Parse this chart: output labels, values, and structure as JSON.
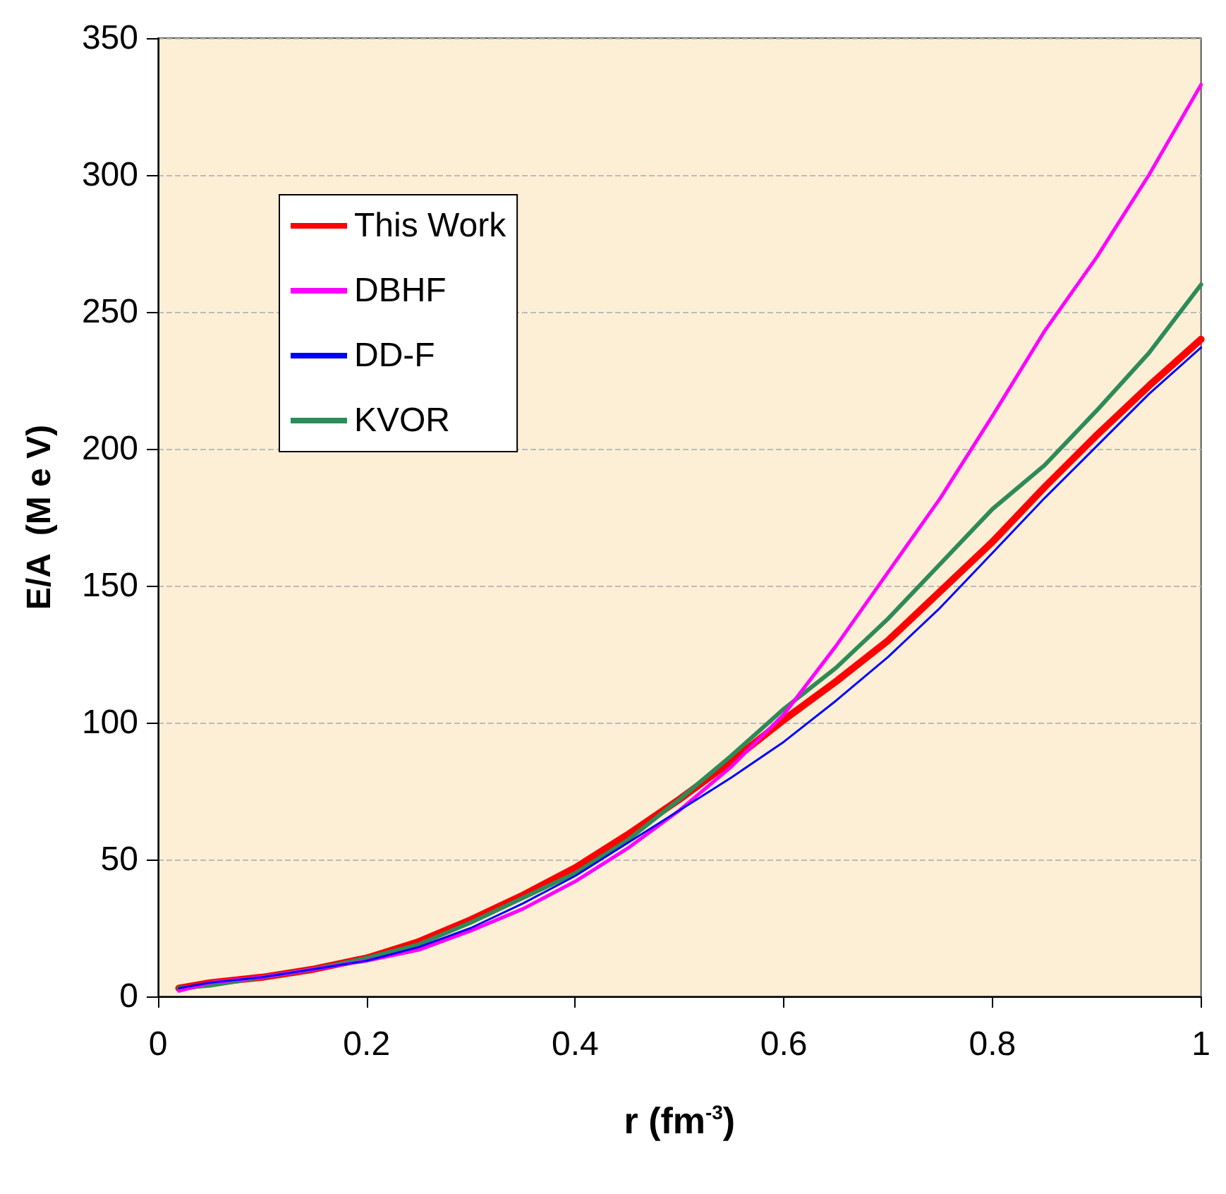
{
  "chart_data": {
    "type": "line",
    "xlabel": "r (fm$^{-3}$)",
    "ylabel": "E/A  (M e V)",
    "x": [
      0.02,
      0.05,
      0.1,
      0.15,
      0.2,
      0.25,
      0.3,
      0.35,
      0.4,
      0.45,
      0.5,
      0.55,
      0.6,
      0.65,
      0.7,
      0.75,
      0.8,
      0.85,
      0.9,
      0.95,
      1.0
    ],
    "series": [
      {
        "name": "This Work",
        "color": "#ff0000",
        "values": [
          3,
          5,
          7,
          10,
          14,
          20,
          28,
          37,
          47,
          59,
          72,
          86,
          101,
          115,
          130,
          148,
          166,
          186,
          205,
          223,
          240
        ]
      },
      {
        "name": "DBHF",
        "color": "#ff00ff",
        "values": [
          2,
          5,
          7,
          10,
          13,
          17,
          24,
          32,
          42,
          54,
          68,
          84,
          103,
          128,
          155,
          182,
          212,
          243,
          270,
          300,
          333
        ]
      },
      {
        "name": "DD-F",
        "color": "#0000ff",
        "values": [
          3,
          5,
          7,
          10,
          13,
          18,
          25,
          34,
          44,
          56,
          68,
          80,
          93,
          108,
          124,
          142,
          162,
          182,
          201,
          220,
          237
        ]
      },
      {
        "name": "KVOR",
        "color": "#2e8b57",
        "values": [
          3,
          4,
          7,
          10,
          14,
          19,
          27,
          36,
          45,
          57,
          72,
          88,
          105,
          120,
          138,
          158,
          178,
          194,
          214,
          235,
          260
        ]
      }
    ],
    "xlim": [
      0,
      1
    ],
    "xticks": [
      0,
      0.2,
      0.4,
      0.6,
      0.8,
      1
    ],
    "ylim": [
      0,
      350
    ],
    "yticks": [
      0,
      50,
      100,
      150,
      200,
      250,
      300,
      350
    ],
    "grid": "y",
    "legend": "top left",
    "marker": "none",
    "line_style": "solid"
  }
}
